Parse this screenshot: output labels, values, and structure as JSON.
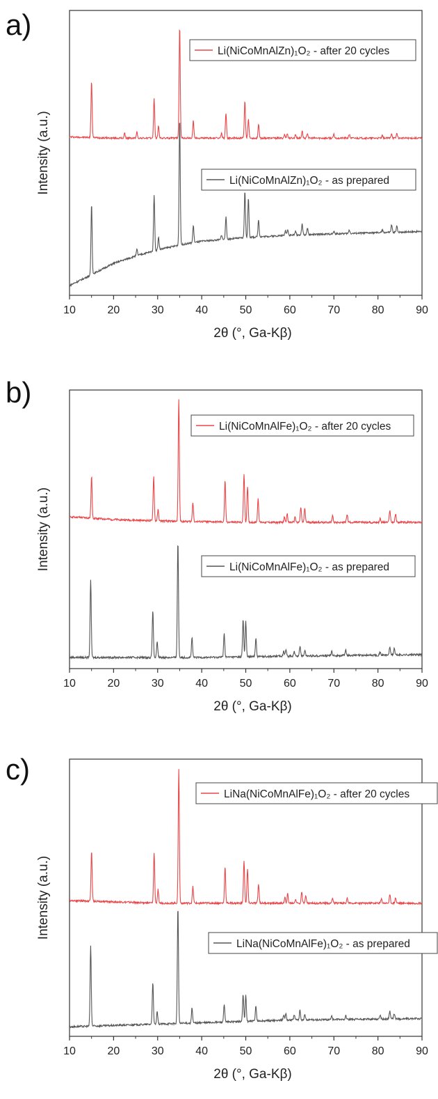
{
  "chart_data": [
    {
      "type": "line",
      "panel_label": "a)",
      "xlabel": "2θ (°, Ga-Kβ)",
      "ylabel": "Intensity (a.u.)",
      "xlim": [
        10,
        90
      ],
      "xticks": [
        10,
        20,
        30,
        40,
        50,
        60,
        70,
        80,
        90
      ],
      "grid": false,
      "series": [
        {
          "name": "Li(NiCoMnAlZn)₁O₂ - after 20 cycles",
          "color": "#e8474a",
          "baseline": [
            [
              10,
              6.05
            ],
            [
              20,
              6.0
            ],
            [
              30,
              6.0
            ],
            [
              50,
              6.0
            ],
            [
              90,
              6.0
            ]
          ],
          "peaks": [
            [
              15.0,
              2.3
            ],
            [
              22.5,
              0.2
            ],
            [
              25.3,
              0.25
            ],
            [
              29.2,
              1.6
            ],
            [
              30.2,
              0.5
            ],
            [
              35.0,
              4.6
            ],
            [
              38.1,
              0.7
            ],
            [
              44.5,
              0.2
            ],
            [
              45.5,
              1.0
            ],
            [
              49.8,
              1.5
            ],
            [
              50.6,
              0.8
            ],
            [
              52.9,
              0.55
            ],
            [
              58.8,
              0.15
            ],
            [
              59.4,
              0.2
            ],
            [
              61.3,
              0.15
            ],
            [
              62.8,
              0.3
            ],
            [
              64.0,
              0.2
            ],
            [
              70.0,
              0.15
            ],
            [
              73.5,
              0.15
            ],
            [
              81.0,
              0.1
            ],
            [
              83.1,
              0.2
            ],
            [
              84.3,
              0.2
            ]
          ]
        },
        {
          "name": "Li(NiCoMnAlZn)₁O₂ - as prepared",
          "color": "#555555",
          "baseline": [
            [
              10,
              0.0
            ],
            [
              14,
              0.35
            ],
            [
              20,
              0.9
            ],
            [
              25,
              1.2
            ],
            [
              30,
              1.45
            ],
            [
              35,
              1.65
            ],
            [
              40,
              1.8
            ],
            [
              50,
              1.95
            ],
            [
              60,
              2.05
            ],
            [
              70,
              2.1
            ],
            [
              80,
              2.15
            ],
            [
              90,
              2.2
            ]
          ],
          "peaks": [
            [
              15.0,
              2.9
            ],
            [
              25.3,
              0.25
            ],
            [
              29.2,
              2.3
            ],
            [
              30.2,
              0.5
            ],
            [
              35.0,
              5.2
            ],
            [
              38.1,
              0.7
            ],
            [
              44.5,
              0.2
            ],
            [
              45.5,
              0.9
            ],
            [
              49.8,
              1.9
            ],
            [
              50.6,
              1.6
            ],
            [
              52.9,
              0.7
            ],
            [
              59.0,
              0.2
            ],
            [
              59.5,
              0.25
            ],
            [
              61.3,
              0.15
            ],
            [
              62.8,
              0.45
            ],
            [
              64.0,
              0.25
            ],
            [
              70.0,
              0.1
            ],
            [
              73.5,
              0.15
            ],
            [
              81.0,
              0.1
            ],
            [
              83.1,
              0.3
            ],
            [
              84.3,
              0.25
            ]
          ]
        }
      ]
    },
    {
      "type": "line",
      "panel_label": "b)",
      "xlabel": "2θ (°, Ga-Kβ)",
      "ylabel": "Intensity (a.u.)",
      "xlim": [
        10,
        90
      ],
      "xticks": [
        10,
        20,
        30,
        40,
        50,
        60,
        70,
        80,
        90
      ],
      "grid": false,
      "series": [
        {
          "name": "Li(NiCoMnAlFe)₁O₂ - after 20 cycles",
          "color": "#e8474a",
          "baseline": [
            [
              10,
              5.15
            ],
            [
              20,
              5.05
            ],
            [
              30,
              5.0
            ],
            [
              50,
              4.95
            ],
            [
              90,
              4.95
            ]
          ],
          "peaks": [
            [
              15.0,
              1.5
            ],
            [
              29.1,
              1.6
            ],
            [
              30.1,
              0.4
            ],
            [
              34.8,
              4.4
            ],
            [
              38.0,
              0.7
            ],
            [
              45.3,
              1.5
            ],
            [
              49.6,
              1.75
            ],
            [
              50.4,
              1.3
            ],
            [
              52.8,
              0.85
            ],
            [
              58.8,
              0.2
            ],
            [
              59.4,
              0.3
            ],
            [
              61.2,
              0.2
            ],
            [
              62.5,
              0.55
            ],
            [
              63.4,
              0.5
            ],
            [
              69.7,
              0.25
            ],
            [
              73.0,
              0.3
            ],
            [
              80.5,
              0.15
            ],
            [
              82.7,
              0.45
            ],
            [
              84.0,
              0.3
            ]
          ]
        },
        {
          "name": "Li(NiCoMnAlFe)₁O₂ - as prepared",
          "color": "#555555",
          "baseline": [
            [
              10,
              0.1
            ],
            [
              20,
              0.1
            ],
            [
              40,
              0.1
            ],
            [
              60,
              0.15
            ],
            [
              90,
              0.2
            ]
          ],
          "peaks": [
            [
              14.8,
              2.8
            ],
            [
              28.9,
              1.7
            ],
            [
              29.9,
              0.55
            ],
            [
              34.6,
              4.2
            ],
            [
              37.8,
              0.7
            ],
            [
              45.1,
              0.85
            ],
            [
              49.4,
              1.35
            ],
            [
              50.0,
              1.3
            ],
            [
              52.3,
              0.65
            ],
            [
              58.6,
              0.2
            ],
            [
              59.1,
              0.25
            ],
            [
              61.0,
              0.15
            ],
            [
              62.3,
              0.35
            ],
            [
              63.4,
              0.2
            ],
            [
              69.5,
              0.15
            ],
            [
              72.7,
              0.2
            ],
            [
              80.5,
              0.1
            ],
            [
              82.7,
              0.3
            ],
            [
              83.7,
              0.25
            ]
          ]
        }
      ]
    },
    {
      "type": "line",
      "panel_label": "c)",
      "xlabel": "2θ (°, Ga-Kβ)",
      "ylabel": "Intensity (a.u.)",
      "xlim": [
        10,
        90
      ],
      "xticks": [
        10,
        20,
        30,
        40,
        50,
        60,
        70,
        80,
        90
      ],
      "grid": false,
      "series": [
        {
          "name": "LiNa(NiCoMnAlFe)₁O₂ - after 20 cycles",
          "color": "#e8474a",
          "baseline": [
            [
              10,
              4.7
            ],
            [
              20,
              4.65
            ],
            [
              30,
              4.6
            ],
            [
              50,
              4.6
            ],
            [
              90,
              4.6
            ]
          ],
          "peaks": [
            [
              15.0,
              1.85
            ],
            [
              29.2,
              1.85
            ],
            [
              30.1,
              0.5
            ],
            [
              34.8,
              4.95
            ],
            [
              38.0,
              0.6
            ],
            [
              45.3,
              1.35
            ],
            [
              49.6,
              1.55
            ],
            [
              50.4,
              1.25
            ],
            [
              52.9,
              0.7
            ],
            [
              58.9,
              0.2
            ],
            [
              59.5,
              0.35
            ],
            [
              61.3,
              0.15
            ],
            [
              62.7,
              0.45
            ],
            [
              63.6,
              0.3
            ],
            [
              69.7,
              0.2
            ],
            [
              73.0,
              0.2
            ],
            [
              80.8,
              0.15
            ],
            [
              82.7,
              0.3
            ],
            [
              84.0,
              0.2
            ]
          ]
        },
        {
          "name": "LiNa(NiCoMnAlFe)₁O₂ - as prepared",
          "color": "#555555",
          "baseline": [
            [
              10,
              0.05
            ],
            [
              20,
              0.1
            ],
            [
              30,
              0.15
            ],
            [
              40,
              0.2
            ],
            [
              60,
              0.3
            ],
            [
              90,
              0.35
            ]
          ],
          "peaks": [
            [
              14.8,
              2.95
            ],
            [
              28.9,
              1.55
            ],
            [
              29.9,
              0.45
            ],
            [
              34.6,
              4.3
            ],
            [
              37.8,
              0.55
            ],
            [
              45.1,
              0.65
            ],
            [
              49.4,
              1.0
            ],
            [
              50.0,
              0.95
            ],
            [
              52.3,
              0.55
            ],
            [
              58.6,
              0.2
            ],
            [
              59.1,
              0.25
            ],
            [
              61.0,
              0.2
            ],
            [
              62.3,
              0.35
            ],
            [
              63.4,
              0.2
            ],
            [
              69.5,
              0.15
            ],
            [
              72.7,
              0.15
            ],
            [
              80.5,
              0.15
            ],
            [
              82.7,
              0.3
            ],
            [
              83.7,
              0.2
            ]
          ]
        }
      ]
    }
  ]
}
